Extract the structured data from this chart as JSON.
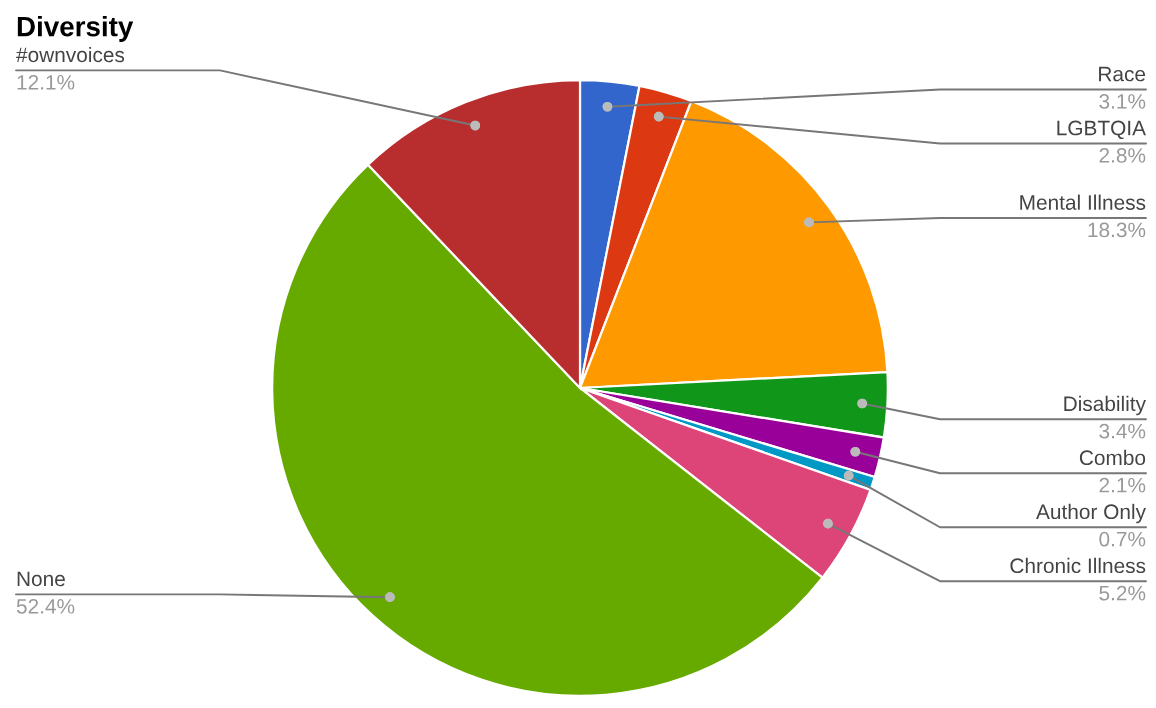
{
  "chart_data": {
    "type": "pie",
    "title": "Diversity",
    "categories": [
      "Race",
      "LGBTQIA",
      "Mental Illness",
      "Disability",
      "Combo",
      "Author Only",
      "Chronic Illness",
      "None",
      "#ownvoices"
    ],
    "values": [
      3.1,
      2.8,
      18.3,
      3.4,
      2.1,
      0.7,
      5.2,
      52.4,
      12.1
    ],
    "value_labels": [
      "3.1%",
      "2.8%",
      "18.3%",
      "3.4%",
      "2.1%",
      "0.7%",
      "5.2%",
      "52.4%",
      "12.1%"
    ],
    "colors": [
      "#3366cc",
      "#dc3912",
      "#ff9900",
      "#109618",
      "#990099",
      "#0099c6",
      "#dd4477",
      "#66aa00",
      "#b82e2e"
    ],
    "legend": false
  }
}
